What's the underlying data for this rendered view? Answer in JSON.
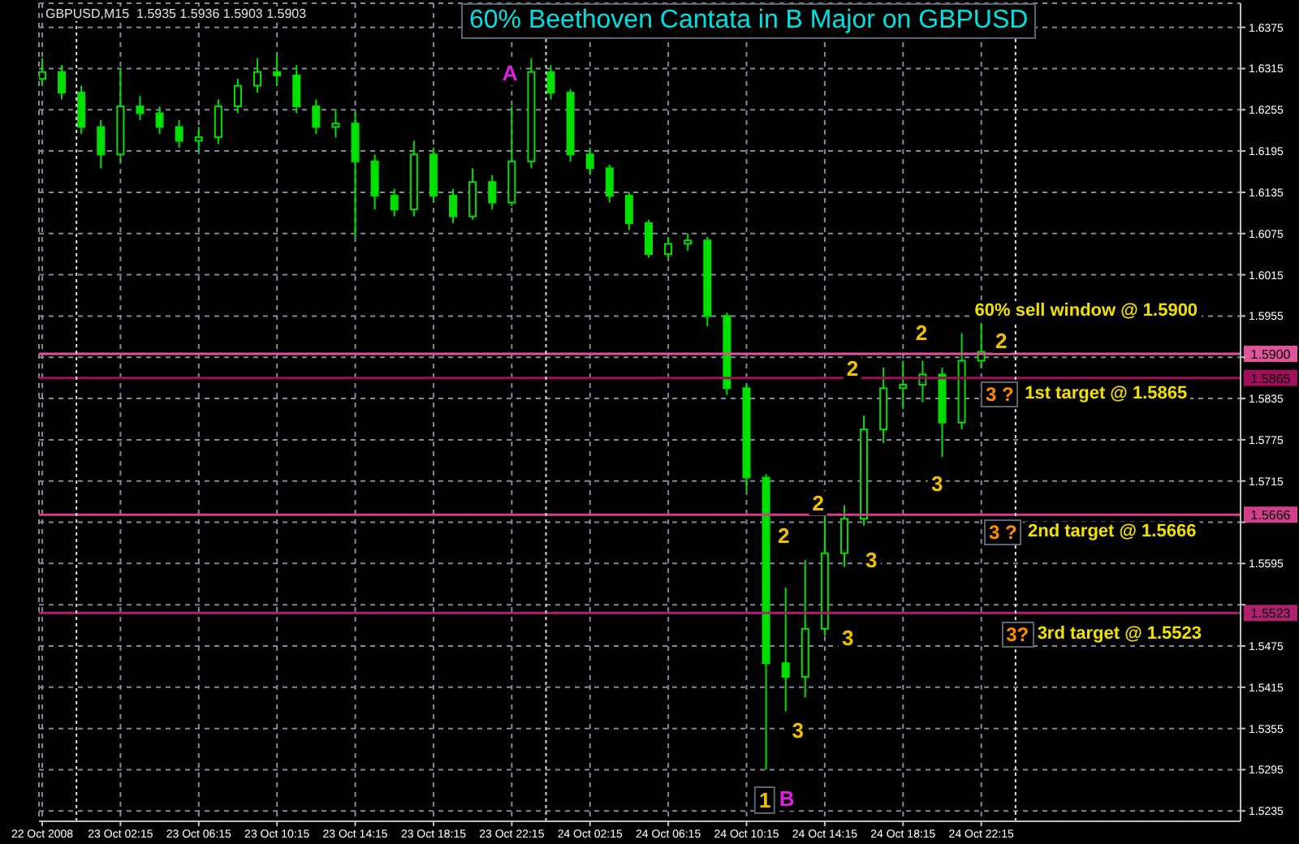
{
  "chart_data": {
    "type": "candlestick",
    "title": "60% Beethoven Cantata in B Major on GBPUSD",
    "subtitle": "GBPUSD,M15  1.5935 1.5936 1.5903 1.5903",
    "color": "#00e000",
    "x": [
      "2008-10-22T22:15",
      "2008-10-22T23:15",
      "2008-10-23T00:15",
      "2008-10-23T01:15",
      "2008-10-23T02:15",
      "2008-10-23T03:15",
      "2008-10-23T04:15",
      "2008-10-23T05:15",
      "2008-10-23T06:15",
      "2008-10-23T07:15",
      "2008-10-23T08:15",
      "2008-10-23T09:15",
      "2008-10-23T10:15",
      "2008-10-23T11:15",
      "2008-10-23T12:15",
      "2008-10-23T13:15",
      "2008-10-23T14:15",
      "2008-10-23T15:15",
      "2008-10-23T16:15",
      "2008-10-23T17:15",
      "2008-10-23T18:15",
      "2008-10-23T19:15",
      "2008-10-23T20:15",
      "2008-10-23T21:15",
      "2008-10-23T22:15",
      "2008-10-23T23:15",
      "2008-10-24T00:15",
      "2008-10-24T01:15",
      "2008-10-24T02:15",
      "2008-10-24T03:15",
      "2008-10-24T04:15",
      "2008-10-24T05:15",
      "2008-10-24T06:15",
      "2008-10-24T07:15",
      "2008-10-24T08:15",
      "2008-10-24T09:15",
      "2008-10-24T10:15",
      "2008-10-24T11:15",
      "2008-10-24T12:15",
      "2008-10-24T13:15",
      "2008-10-24T14:15",
      "2008-10-24T15:15",
      "2008-10-24T16:15",
      "2008-10-24T17:15",
      "2008-10-24T18:15",
      "2008-10-24T19:15",
      "2008-10-24T20:15",
      "2008-10-24T21:15",
      "2008-10-24T22:15"
    ],
    "ohlc": [
      [
        1.63,
        1.633,
        1.629,
        1.631
      ],
      [
        1.631,
        1.632,
        1.627,
        1.628
      ],
      [
        1.628,
        1.629,
        1.622,
        1.623
      ],
      [
        1.623,
        1.624,
        1.617,
        1.619
      ],
      [
        1.619,
        1.6315,
        1.618,
        1.626
      ],
      [
        1.626,
        1.6275,
        1.624,
        1.625
      ],
      [
        1.625,
        1.626,
        1.622,
        1.623
      ],
      [
        1.623,
        1.624,
        1.62,
        1.621
      ],
      [
        1.621,
        1.623,
        1.6195,
        1.6215
      ],
      [
        1.6215,
        1.627,
        1.6205,
        1.626
      ],
      [
        1.626,
        1.63,
        1.625,
        1.629
      ],
      [
        1.629,
        1.633,
        1.628,
        1.631
      ],
      [
        1.631,
        1.6335,
        1.629,
        1.6305
      ],
      [
        1.6305,
        1.632,
        1.625,
        1.626
      ],
      [
        1.626,
        1.627,
        1.622,
        1.623
      ],
      [
        1.623,
        1.6255,
        1.6215,
        1.6235
      ],
      [
        1.6235,
        1.625,
        1.607,
        1.618
      ],
      [
        1.618,
        1.619,
        1.611,
        1.613
      ],
      [
        1.613,
        1.614,
        1.61,
        1.611
      ],
      [
        1.611,
        1.621,
        1.61,
        1.619
      ],
      [
        1.619,
        1.62,
        1.612,
        1.613
      ],
      [
        1.613,
        1.614,
        1.609,
        1.61
      ],
      [
        1.61,
        1.617,
        1.6095,
        1.615
      ],
      [
        1.615,
        1.616,
        1.611,
        1.612
      ],
      [
        1.612,
        1.626,
        1.6115,
        1.618
      ],
      [
        1.618,
        1.633,
        1.617,
        1.631
      ],
      [
        1.631,
        1.632,
        1.627,
        1.628
      ],
      [
        1.628,
        1.6285,
        1.618,
        1.619
      ],
      [
        1.619,
        1.62,
        1.616,
        1.617
      ],
      [
        1.617,
        1.6175,
        1.612,
        1.613
      ],
      [
        1.613,
        1.6135,
        1.608,
        1.609
      ],
      [
        1.609,
        1.6095,
        1.604,
        1.6045
      ],
      [
        1.6045,
        1.607,
        1.604,
        1.606
      ],
      [
        1.606,
        1.6075,
        1.605,
        1.6065
      ],
      [
        1.6065,
        1.607,
        1.594,
        1.5955
      ],
      [
        1.5955,
        1.596,
        1.584,
        1.585
      ],
      [
        1.585,
        1.5855,
        1.57,
        1.572
      ],
      [
        1.572,
        1.5725,
        1.5295,
        1.545
      ],
      [
        1.545,
        1.556,
        1.538,
        1.543
      ],
      [
        1.543,
        1.56,
        1.54,
        1.55
      ],
      [
        1.55,
        1.567,
        1.549,
        1.561
      ],
      [
        1.561,
        1.568,
        1.559,
        1.566
      ],
      [
        1.566,
        1.581,
        1.565,
        1.579
      ],
      [
        1.579,
        1.588,
        1.577,
        1.585
      ],
      [
        1.585,
        1.589,
        1.582,
        1.5855
      ],
      [
        1.5855,
        1.589,
        1.583,
        1.587
      ],
      [
        1.587,
        1.588,
        1.575,
        1.58
      ],
      [
        1.58,
        1.593,
        1.579,
        1.589
      ],
      [
        1.589,
        1.5945,
        1.588,
        1.5903
      ]
    ],
    "xlim": [
      "2008-10-22T22:05",
      "2008-10-25T11:30"
    ],
    "xticks": [
      {
        "value": "2008-10-22T22:15",
        "label": "22 Oct 2008"
      },
      {
        "value": "2008-10-23T02:15",
        "label": "23 Oct 02:15"
      },
      {
        "value": "2008-10-23T06:15",
        "label": "23 Oct 06:15"
      },
      {
        "value": "2008-10-23T10:15",
        "label": "23 Oct 10:15"
      },
      {
        "value": "2008-10-23T14:15",
        "label": "23 Oct 14:15"
      },
      {
        "value": "2008-10-23T18:15",
        "label": "23 Oct 18:15"
      },
      {
        "value": "2008-10-23T22:15",
        "label": "23 Oct 22:15"
      },
      {
        "value": "2008-10-24T02:15",
        "label": "24 Oct 02:15"
      },
      {
        "value": "2008-10-24T06:15",
        "label": "24 Oct 06:15"
      },
      {
        "value": "2008-10-24T10:15",
        "label": "24 Oct 10:15"
      },
      {
        "value": "2008-10-24T14:15",
        "label": "24 Oct 14:15"
      },
      {
        "value": "2008-10-24T18:15",
        "label": "24 Oct 18:15"
      },
      {
        "value": "2008-10-24T22:15",
        "label": "24 Oct 22:15"
      }
    ],
    "ylim": [
      1.522,
      1.641
    ],
    "yticks": [
      1.5235,
      1.5295,
      1.5355,
      1.5415,
      1.5475,
      {
        "value": 1.5535,
        "label": null
      },
      1.5595,
      {
        "value": 1.5655,
        "label": null
      },
      1.5715,
      1.5775,
      1.5835,
      {
        "value": 1.5895,
        "label": null
      },
      1.5955,
      1.6015,
      1.6075,
      1.6135,
      1.6195,
      1.6255,
      1.6315,
      1.6375
    ],
    "grid": true,
    "ref_lines": [
      {
        "axis": "y",
        "value": 1.59,
        "label": "1.5900",
        "color": "#e0559a"
      },
      {
        "axis": "y",
        "value": 1.5865,
        "label": "1.5865",
        "color": "#a0105a"
      },
      {
        "axis": "y",
        "value": 1.5666,
        "label": "1.5666",
        "color": "#d0408a"
      },
      {
        "axis": "y",
        "value": 1.5523,
        "label": "1.5523",
        "color": "#b02070"
      },
      {
        "axis": "x",
        "value": "2008-10-23T00:00",
        "color": "#dddddd",
        "line_style": "dotted"
      },
      {
        "axis": "x",
        "value": "2008-10-24T00:00",
        "color": "#dddddd",
        "line_style": "dotted"
      },
      {
        "axis": "x",
        "value": "2008-10-25T00:00",
        "color": "#dddddd",
        "line_style": "dotted"
      }
    ],
    "annotations": [
      "A",
      "60% sell window @ 1.5900",
      "2",
      "2",
      "2",
      "3 ?",
      "1st target @ 1.5865",
      "3",
      "2",
      "2",
      "3",
      "3 ?",
      "2nd target @ 1.5666",
      "3",
      "3?",
      "3rd target @ 1.5523",
      "3",
      "1",
      "B"
    ]
  }
}
